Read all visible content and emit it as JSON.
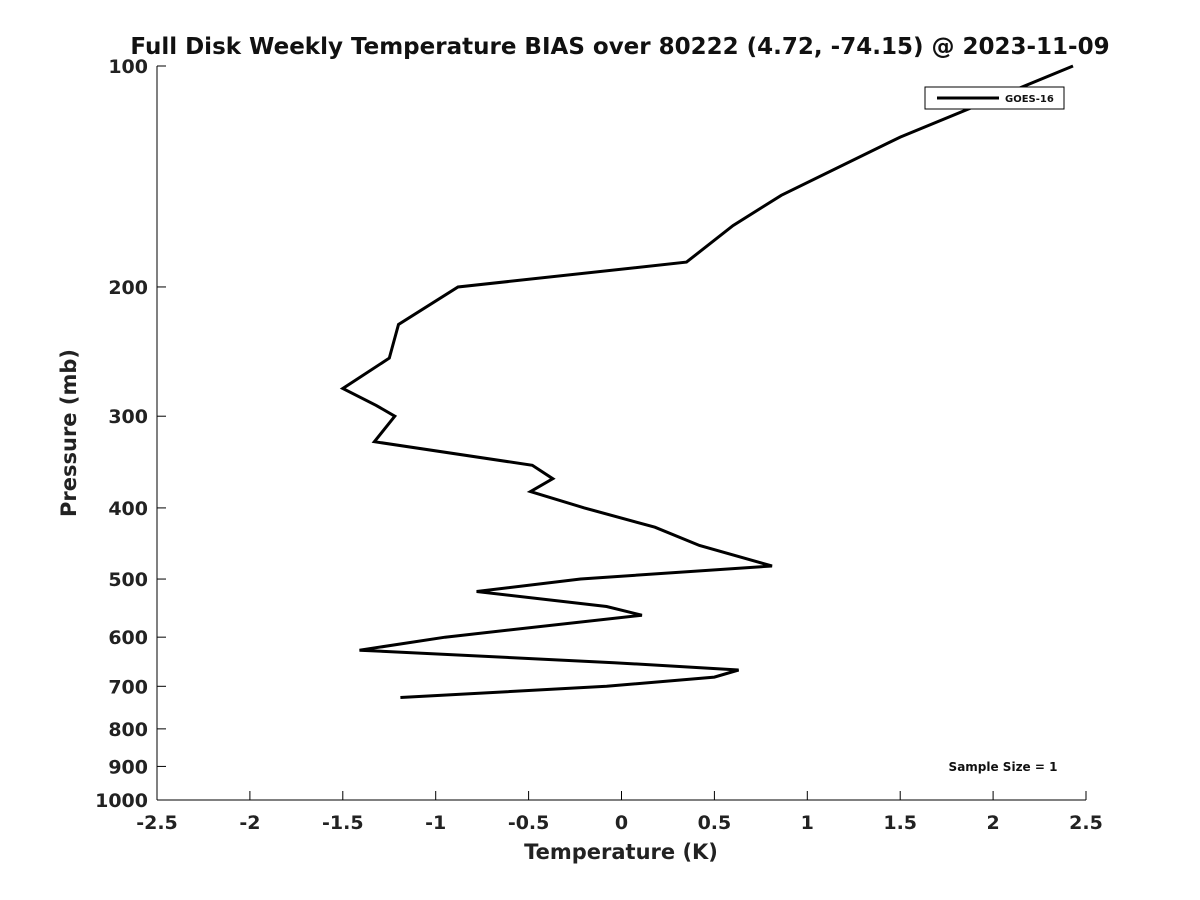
{
  "chart_data": {
    "type": "line",
    "title": "Full Disk Weekly Temperature BIAS over 80222 (4.72, -74.15) @ 2023-11-09",
    "xlabel": "Temperature (K)",
    "ylabel": "Pressure (mb)",
    "xlim": [
      -2.5,
      2.5
    ],
    "ylim": [
      1000,
      100
    ],
    "yscale": "log",
    "xticks": [
      "-2.5",
      "-2",
      "-1.5",
      "-1",
      "-0.5",
      "0",
      "0.5",
      "1",
      "1.5",
      "2",
      "2.5"
    ],
    "yticks": [
      "100",
      "200",
      "300",
      "400",
      "500",
      "600",
      "700",
      "800",
      "900",
      "1000"
    ],
    "legend_position": "top-right",
    "grid": false,
    "series": [
      {
        "name": "GOES-16",
        "color": "#000000",
        "points": [
          {
            "x": 2.43,
            "y": 100
          },
          {
            "x": 1.5,
            "y": 125
          },
          {
            "x": 0.86,
            "y": 150
          },
          {
            "x": 0.6,
            "y": 165
          },
          {
            "x": 0.35,
            "y": 185
          },
          {
            "x": -0.88,
            "y": 200
          },
          {
            "x": -1.2,
            "y": 225
          },
          {
            "x": -1.25,
            "y": 250
          },
          {
            "x": -1.5,
            "y": 275
          },
          {
            "x": -1.32,
            "y": 290
          },
          {
            "x": -1.22,
            "y": 300
          },
          {
            "x": -1.33,
            "y": 325
          },
          {
            "x": -0.48,
            "y": 350
          },
          {
            "x": -0.37,
            "y": 365
          },
          {
            "x": -0.49,
            "y": 380
          },
          {
            "x": -0.2,
            "y": 400
          },
          {
            "x": 0.18,
            "y": 425
          },
          {
            "x": 0.42,
            "y": 450
          },
          {
            "x": 0.81,
            "y": 480
          },
          {
            "x": -0.22,
            "y": 500
          },
          {
            "x": -0.78,
            "y": 520
          },
          {
            "x": -0.08,
            "y": 545
          },
          {
            "x": 0.11,
            "y": 560
          },
          {
            "x": -0.95,
            "y": 600
          },
          {
            "x": -1.41,
            "y": 625
          },
          {
            "x": -0.04,
            "y": 650
          },
          {
            "x": 0.63,
            "y": 665
          },
          {
            "x": 0.5,
            "y": 680
          },
          {
            "x": -0.08,
            "y": 700
          },
          {
            "x": -1.19,
            "y": 725
          }
        ]
      }
    ],
    "annotations": [
      {
        "text": "Sample Size = 1",
        "position": "bottom-right"
      }
    ]
  }
}
